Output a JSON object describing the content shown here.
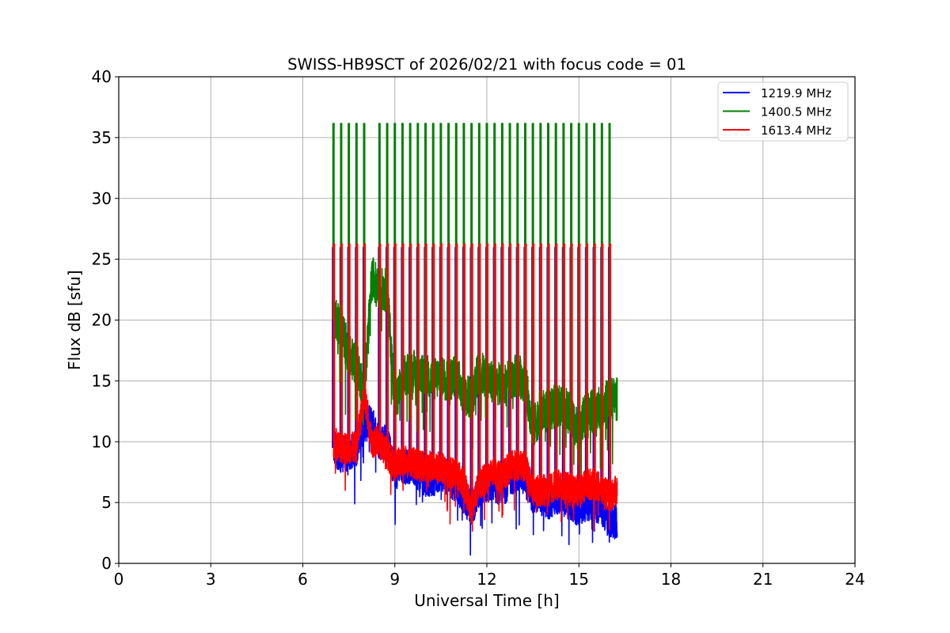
{
  "chart_data": {
    "type": "line",
    "title": "SWISS-HB9SCT of 2026/02/21 with focus code = 01",
    "xlabel": "Universal Time [h]",
    "ylabel": "Flux dB [sfu]",
    "xlim": [
      0,
      24
    ],
    "ylim": [
      0,
      40
    ],
    "xticks": [
      "0",
      "3",
      "6",
      "9",
      "12",
      "15",
      "18",
      "21",
      "24"
    ],
    "yticks": [
      "0",
      "5",
      "10",
      "15",
      "20",
      "25",
      "30",
      "35",
      "40"
    ],
    "grid": true,
    "legend_position": "top-right",
    "x_baseline_start": 7.0,
    "x_baseline_step": 0.25,
    "spike_times": [
      7.0,
      7.25,
      7.5,
      7.75,
      8.0,
      8.5,
      8.75,
      9.0,
      9.25,
      9.5,
      9.75,
      10.0,
      10.25,
      10.5,
      10.75,
      11.0,
      11.25,
      11.5,
      11.75,
      12.0,
      12.25,
      12.5,
      12.75,
      13.0,
      13.25,
      13.5,
      13.75,
      14.0,
      14.25,
      14.5,
      14.75,
      15.0,
      15.25,
      15.5,
      15.75,
      16.0
    ],
    "series": [
      {
        "name": "1219.9 MHz",
        "color": "#0000ff",
        "noise": 1.5,
        "spike_peak": 26.0,
        "baseline": [
          9.5,
          9,
          9,
          9.5,
          11.5,
          11.5,
          10,
          10,
          7.5,
          8,
          8,
          7.5,
          7,
          7,
          7.5,
          7,
          6.5,
          5.5,
          4.5,
          6,
          6.5,
          6.5,
          6,
          7,
          7.5,
          7,
          5.5,
          5.5,
          5,
          5.5,
          5.5,
          5,
          4.5,
          5,
          5,
          4.5,
          3.5,
          3.5
        ]
      },
      {
        "name": "1400.5 MHz",
        "color": "#008000",
        "noise": 1.8,
        "spike_peak": 36.2,
        "baseline": [
          20,
          19.5,
          17,
          16.5,
          14,
          23.5,
          22.5,
          22.5,
          13,
          15,
          16,
          15.5,
          15.5,
          15,
          15.5,
          15,
          15.5,
          14,
          13.5,
          16,
          15,
          15,
          14.5,
          15,
          15.5,
          15,
          11,
          12.5,
          12.5,
          13,
          13,
          12,
          11,
          12.5,
          12.5,
          13,
          13.5,
          13.5
        ]
      },
      {
        "name": "1613.4 MHz",
        "color": "#ff0000",
        "noise": 1.3,
        "spike_peak": 26.3,
        "baseline": [
          10,
          9.5,
          9.5,
          9.5,
          14,
          10,
          10,
          9,
          8,
          8.5,
          8.5,
          8,
          8,
          8,
          8,
          7.5,
          7.5,
          6.5,
          4.5,
          6.5,
          7,
          7.5,
          7,
          8,
          8,
          8,
          6,
          6,
          6,
          6.5,
          6.5,
          6,
          6,
          6.5,
          6.5,
          6,
          5.5,
          6
        ]
      }
    ]
  }
}
